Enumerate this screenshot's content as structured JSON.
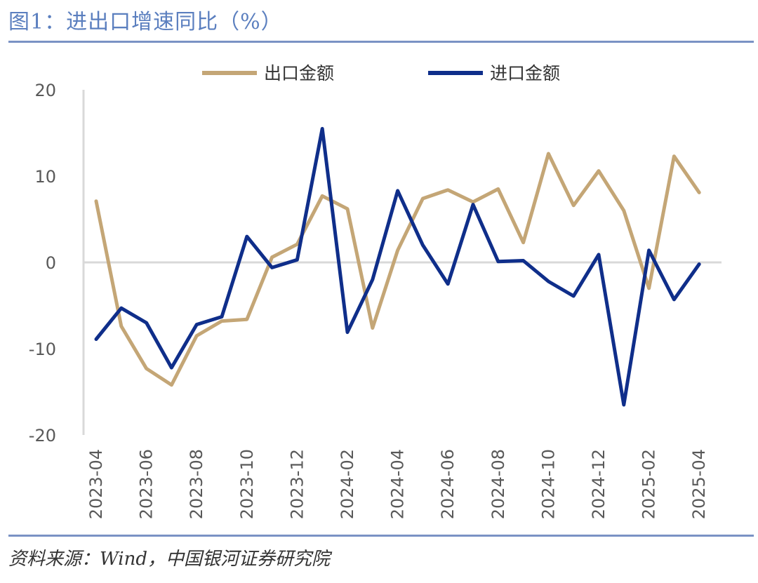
{
  "title": "图1：进出口增速同比（%）",
  "source": "资料来源：Wind，中国银河证券研究院",
  "colors": {
    "export": "#c4a676",
    "import": "#0f2e8a",
    "axis": "#d9d9d9",
    "rule": "#7a92c4",
    "title": "#5b7fbf"
  },
  "chart_data": {
    "type": "line",
    "title": "",
    "xlabel": "",
    "ylabel": "",
    "ylim": [
      -20,
      20
    ],
    "yticks": [
      20,
      10,
      0,
      -10,
      -20
    ],
    "grid": false,
    "legend_position": "top",
    "x": [
      "2023-04",
      "2023-05",
      "2023-06",
      "2023-07",
      "2023-08",
      "2023-09",
      "2023-10",
      "2023-11",
      "2023-12",
      "2024-01",
      "2024-02",
      "2024-03",
      "2024-04",
      "2024-05",
      "2024-06",
      "2024-07",
      "2024-08",
      "2024-09",
      "2024-10",
      "2024-11",
      "2024-12",
      "2025-01",
      "2025-02",
      "2025-03",
      "2025-04"
    ],
    "xtick_labels": [
      "2023-04",
      "2023-06",
      "2023-08",
      "2023-10",
      "2023-12",
      "2024-02",
      "2024-04",
      "2024-06",
      "2024-08",
      "2024-10",
      "2024-12",
      "2025-02",
      "2025-04"
    ],
    "series": [
      {
        "name": "出口金额",
        "values": [
          7.1,
          -7.4,
          -12.3,
          -14.2,
          -8.5,
          -6.8,
          -6.6,
          0.6,
          2.1,
          7.7,
          6.2,
          -7.6,
          1.4,
          7.4,
          8.4,
          7.0,
          8.5,
          2.3,
          12.6,
          6.6,
          10.6,
          6.0,
          -3.0,
          12.3,
          8.1
        ]
      },
      {
        "name": "进口金额",
        "values": [
          -8.9,
          -5.3,
          -7.0,
          -12.2,
          -7.2,
          -6.3,
          3.0,
          -0.6,
          0.3,
          15.5,
          -8.1,
          -2.0,
          8.3,
          2.0,
          -2.5,
          6.7,
          0.1,
          0.2,
          -2.2,
          -3.9,
          0.9,
          -16.5,
          1.4,
          -4.3,
          -0.2
        ]
      }
    ]
  }
}
